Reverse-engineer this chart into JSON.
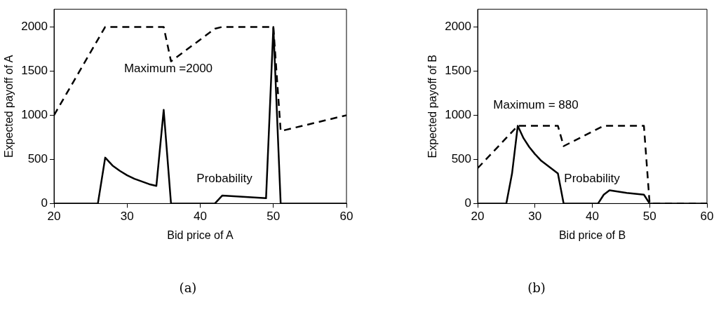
{
  "chart_data": [
    {
      "type": "line",
      "xlabel": "Bid price of A",
      "ylabel": "Expected payoff of A",
      "xlim": [
        20,
        60
      ],
      "xticks": [
        20,
        30,
        40,
        50,
        60
      ],
      "ylim": [
        0,
        2200
      ],
      "yticks": [
        0,
        500,
        1000,
        1500,
        2000
      ],
      "grid": false,
      "legend": false,
      "marker": "none",
      "series": [
        {
          "color": "#000000",
          "line_style": "dashed",
          "x": [
            20,
            27,
            35,
            36,
            42,
            43,
            50,
            51,
            60
          ],
          "values": [
            1000,
            2000,
            2000,
            1610,
            1980,
            2000,
            2000,
            820,
            1000
          ]
        },
        {
          "color": "#000000",
          "line_style": "solid",
          "x": [
            20,
            26,
            27,
            28,
            29,
            30,
            31,
            32,
            33,
            34,
            35,
            36,
            42,
            43,
            49,
            50,
            51,
            60
          ],
          "values": [
            0,
            0,
            520,
            430,
            370,
            320,
            280,
            250,
            220,
            200,
            1060,
            0,
            0,
            90,
            60,
            2000,
            0,
            0
          ]
        }
      ],
      "annotations": [
        "Maximum =2000",
        "Probability",
        "(a)"
      ]
    },
    {
      "type": "line",
      "xlabel": "Bid price of B",
      "ylabel": "Expected payoff of B",
      "xlim": [
        20,
        60
      ],
      "xticks": [
        20,
        30,
        40,
        50,
        60
      ],
      "ylim": [
        0,
        2200
      ],
      "yticks": [
        0,
        500,
        1000,
        1500,
        2000
      ],
      "grid": false,
      "legend": false,
      "marker": "none",
      "series": [
        {
          "color": "#000000",
          "line_style": "dashed",
          "x": [
            20,
            27,
            34,
            35,
            42,
            49,
            50,
            60
          ],
          "values": [
            400,
            880,
            880,
            650,
            880,
            880,
            0,
            0
          ]
        },
        {
          "color": "#000000",
          "line_style": "solid",
          "x": [
            20,
            25,
            26,
            27,
            28,
            29,
            30,
            31,
            32,
            33,
            34,
            35,
            41,
            42,
            43,
            46,
            49,
            50,
            60
          ],
          "values": [
            0,
            0,
            340,
            880,
            740,
            640,
            560,
            490,
            440,
            390,
            340,
            0,
            0,
            100,
            150,
            120,
            100,
            0,
            0
          ]
        }
      ],
      "annotations": [
        "Maximum = 880",
        "Probability",
        "(b)"
      ]
    }
  ]
}
